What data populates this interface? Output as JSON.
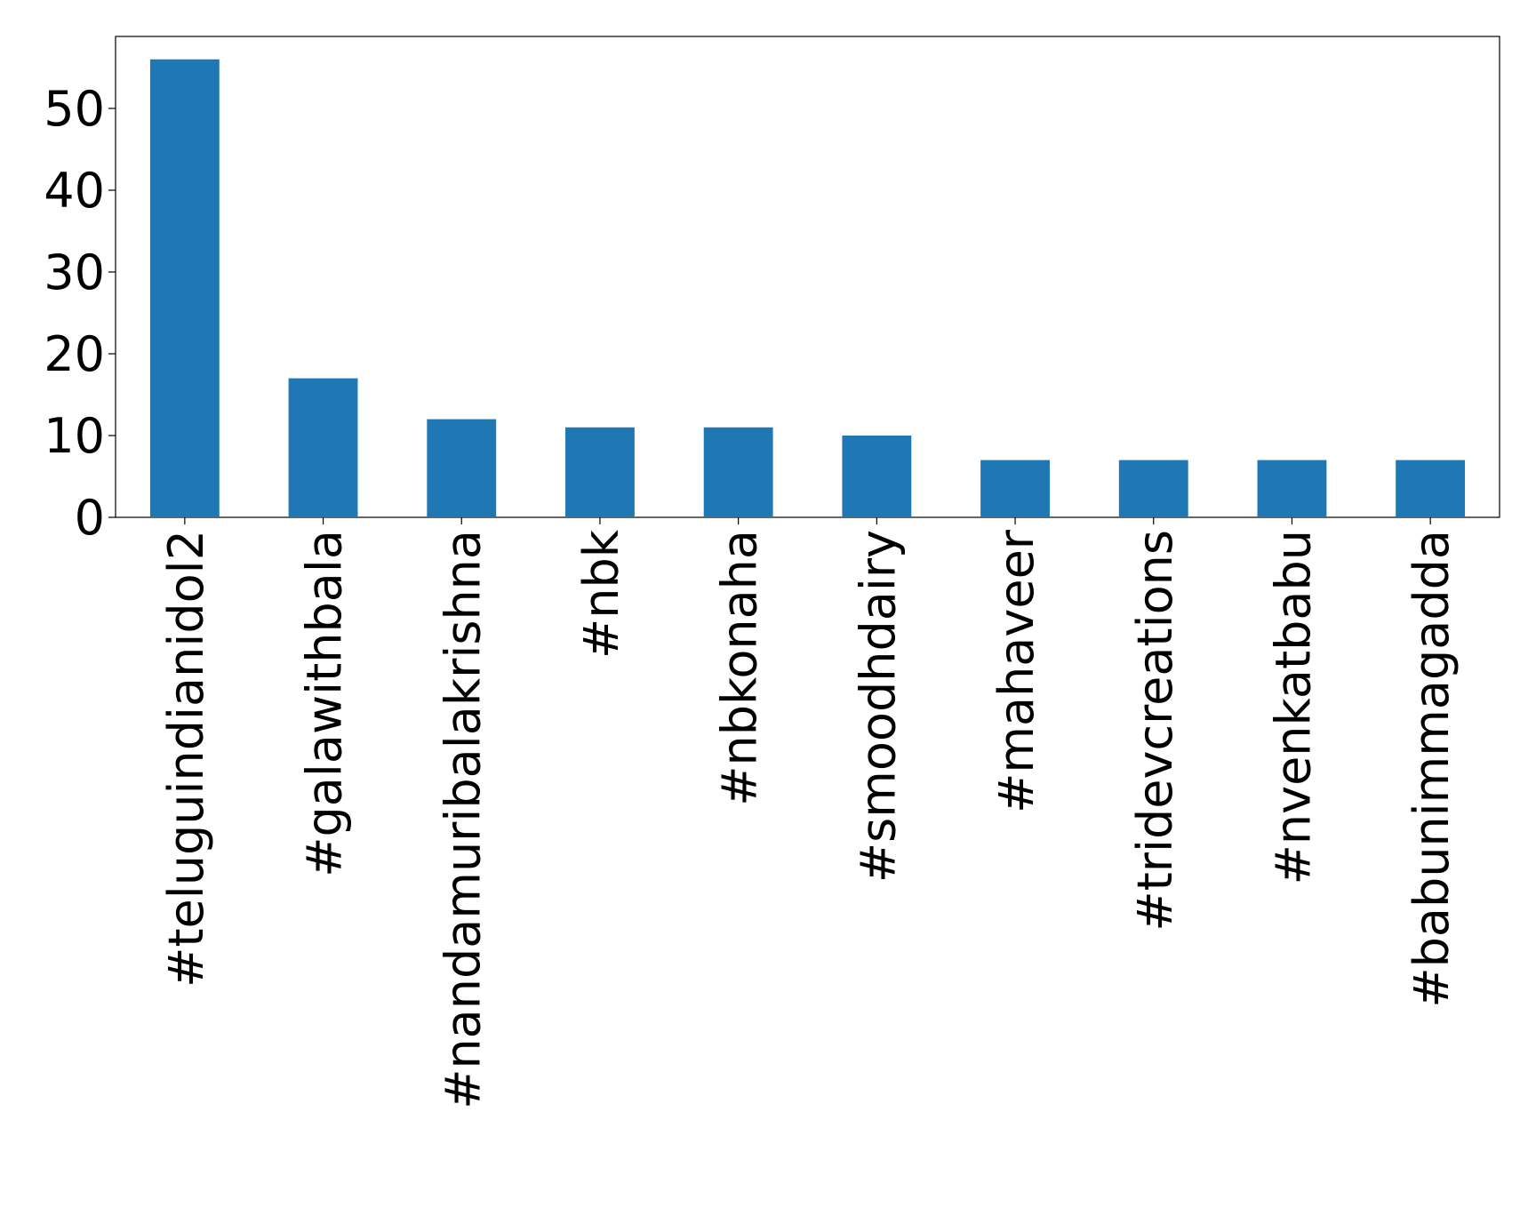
{
  "chart_data": {
    "type": "bar",
    "categories": [
      "#teluguindianidol2",
      "#galawithbala",
      "#nandamuribalakrishna",
      "#nbk",
      "#nbkonaha",
      "#smoodhdairy",
      "#mahaveer",
      "#tridevcreations",
      "#nvenkatbabu",
      "#babunimmagadda"
    ],
    "values": [
      56,
      17,
      12,
      11,
      11,
      10,
      7,
      7,
      7,
      7
    ],
    "color": "#1f77b4",
    "ylim": [
      0,
      58.8
    ],
    "yticks": [
      0,
      10,
      20,
      30,
      40,
      50
    ],
    "grid": false
  }
}
